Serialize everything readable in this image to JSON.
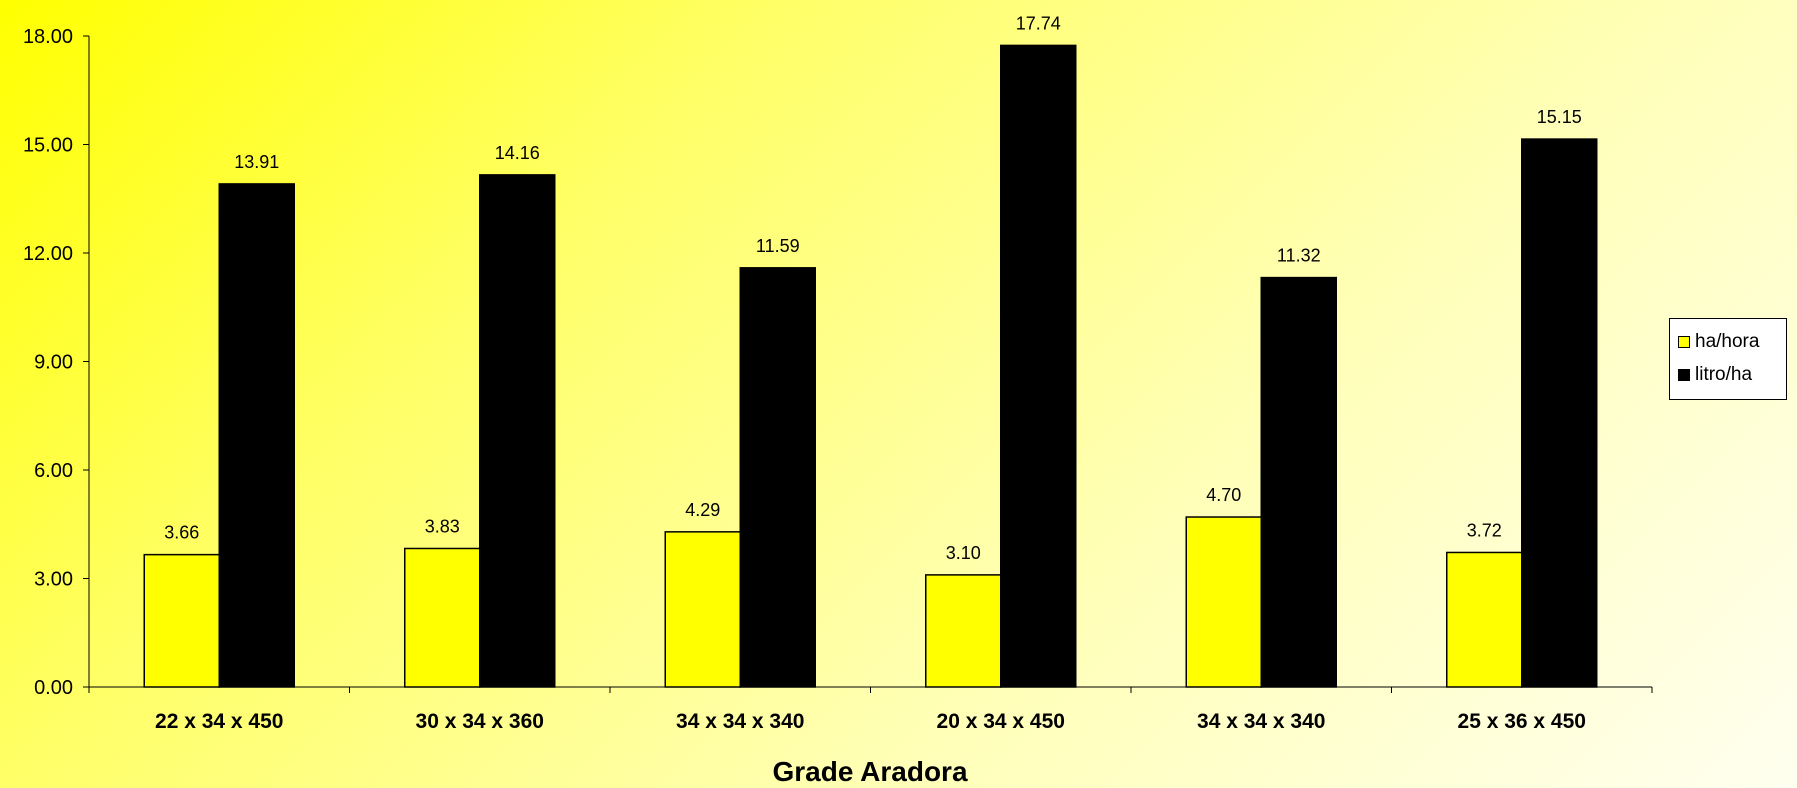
{
  "chart_data": {
    "type": "bar",
    "title": "",
    "xlabel": "Grade Aradora",
    "ylabel": "",
    "ylim": [
      0,
      18
    ],
    "yticks": [
      "0.00",
      "3.00",
      "6.00",
      "9.00",
      "12.00",
      "15.00",
      "18.00"
    ],
    "categories": [
      "22 x 34 x 450",
      "30 x 34 x 360",
      "34 x 34 x 340",
      "20 x 34 x 450",
      "34 x 34 x 340",
      "25 x 36 x 450"
    ],
    "series": [
      {
        "name": "ha/hora",
        "color": "#ffff00",
        "values": [
          3.66,
          3.83,
          4.29,
          3.1,
          4.7,
          3.72
        ],
        "labels": [
          "3.66",
          "3.83",
          "4.29",
          "3.10",
          "4.70",
          "3.72"
        ]
      },
      {
        "name": "litro/ha",
        "color": "#000000",
        "values": [
          13.91,
          14.16,
          11.59,
          17.74,
          11.32,
          15.15
        ],
        "labels": [
          "13.91",
          "14.16",
          "11.59",
          "17.74",
          "11.32",
          "15.15"
        ]
      }
    ],
    "grid": false,
    "legend": "right"
  }
}
